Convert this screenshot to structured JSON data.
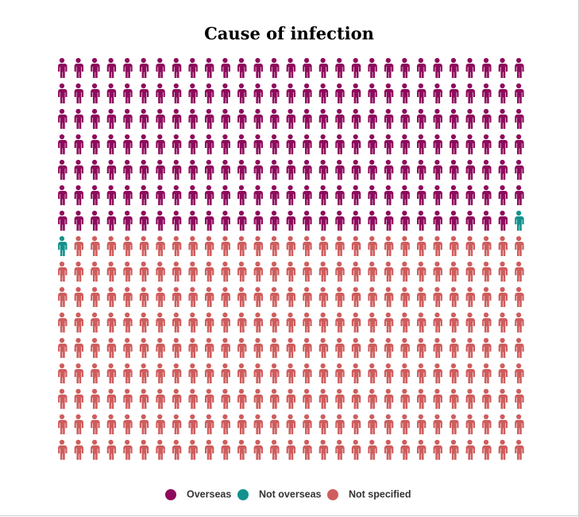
{
  "chart_data": {
    "type": "waffle",
    "title": "Cause of infection",
    "series": [
      {
        "name": "Overseas",
        "color": "#8e0b5c",
        "values": 202
      },
      {
        "name": "Not overseas",
        "color": "#13918c",
        "values": 2
      },
      {
        "name": "Not specified",
        "color": "#cf5d5d",
        "values": 260
      }
    ]
  }
}
